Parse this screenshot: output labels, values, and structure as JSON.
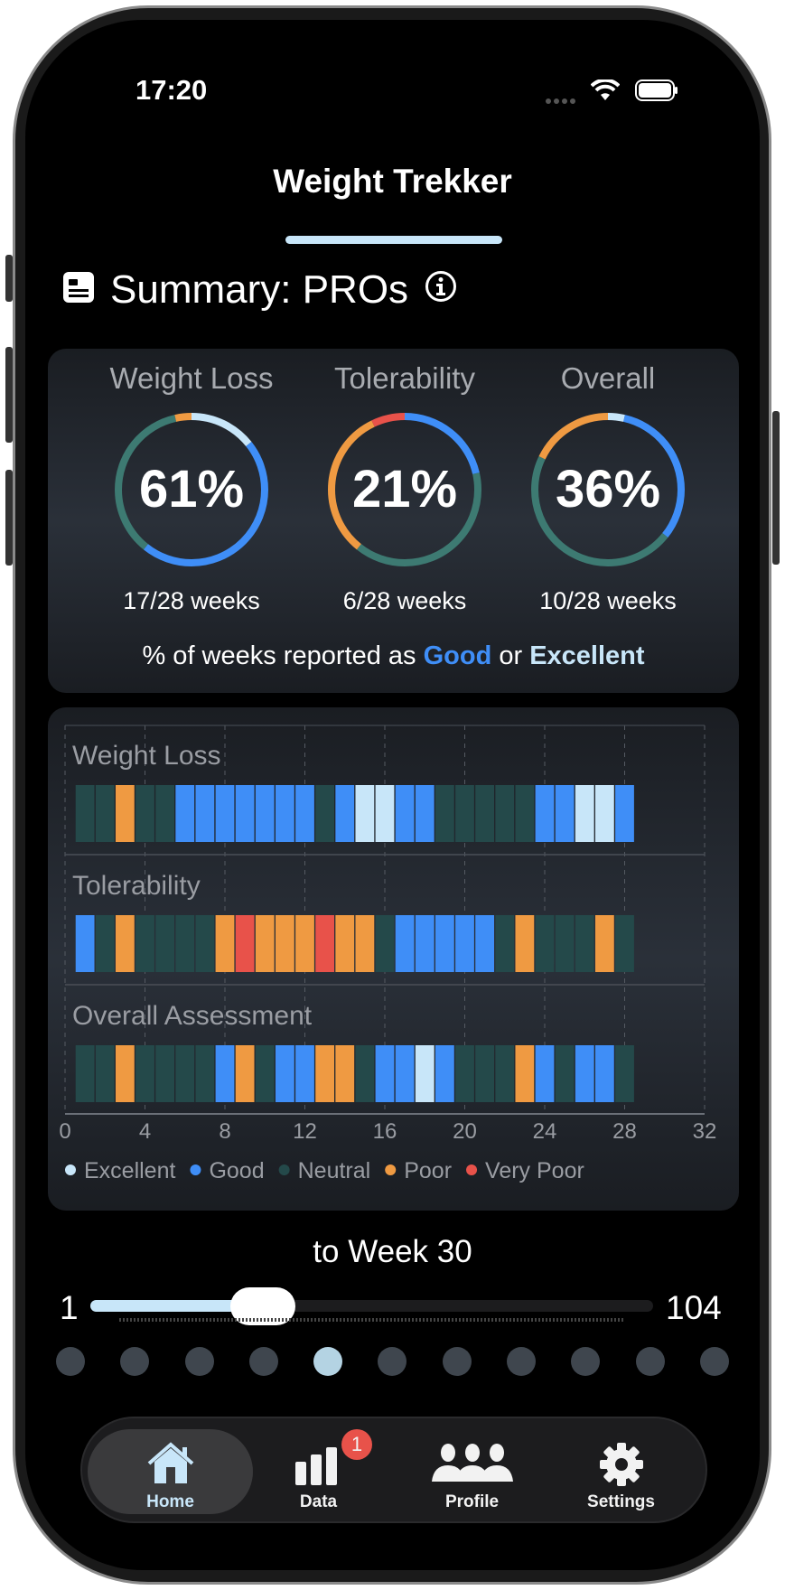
{
  "status": {
    "time": "17:20"
  },
  "app_title": "Weight Trekker",
  "section": {
    "title": "Summary: PROs",
    "icon": "summary-card-icon",
    "info_icon": "info-icon"
  },
  "colors": {
    "excellent": "#c8e6f9",
    "good": "#3f8ef7",
    "neutral": "#24494a",
    "neutral_ring": "#3d7a72",
    "poor": "#ef9a42",
    "very_poor": "#e8524a"
  },
  "summary": {
    "rings": [
      {
        "label": "Weight Loss",
        "percent": "61%",
        "weeks": "17/28 weeks",
        "counts": {
          "excellent": 4,
          "good": 13,
          "neutral": 10,
          "poor": 1,
          "very_poor": 0
        }
      },
      {
        "label": "Tolerability",
        "percent": "21%",
        "weeks": "6/28 weeks",
        "counts": {
          "excellent": 0,
          "good": 6,
          "neutral": 11,
          "poor": 9,
          "very_poor": 2
        }
      },
      {
        "label": "Overall",
        "percent": "36%",
        "weeks": "10/28 weeks",
        "counts": {
          "excellent": 1,
          "good": 9,
          "neutral": 13,
          "poor": 5,
          "very_poor": 0
        }
      }
    ],
    "caption_pre": "% of weeks reported as ",
    "caption_good": "Good",
    "caption_mid": " or ",
    "caption_excellent": "Excellent"
  },
  "chart_data": {
    "type": "heatmap",
    "xlim": [
      0,
      32
    ],
    "x_ticks": [
      "0",
      "4",
      "8",
      "12",
      "16",
      "20",
      "24",
      "28",
      "32"
    ],
    "grid": true,
    "legend_placement": "bottom",
    "legend": [
      "Excellent",
      "Good",
      "Neutral",
      "Poor",
      "Very Poor"
    ],
    "weeks": [
      1,
      2,
      3,
      4,
      5,
      6,
      7,
      8,
      9,
      10,
      11,
      12,
      13,
      14,
      15,
      16,
      17,
      18,
      19,
      20,
      21,
      22,
      23,
      24,
      25,
      26,
      27,
      28
    ],
    "series": [
      {
        "name": "Weight Loss",
        "values": [
          "N",
          "N",
          "P",
          "N",
          "N",
          "G",
          "G",
          "G",
          "G",
          "G",
          "G",
          "G",
          "N",
          "G",
          "E",
          "E",
          "G",
          "G",
          "N",
          "N",
          "N",
          "N",
          "N",
          "G",
          "G",
          "E",
          "E",
          "G"
        ]
      },
      {
        "name": "Tolerability",
        "values": [
          "G",
          "N",
          "P",
          "N",
          "N",
          "N",
          "N",
          "P",
          "VP",
          "P",
          "P",
          "P",
          "VP",
          "P",
          "P",
          "N",
          "G",
          "G",
          "G",
          "G",
          "G",
          "N",
          "P",
          "N",
          "N",
          "N",
          "P",
          "N"
        ]
      },
      {
        "name": "Overall Assessment",
        "values": [
          "N",
          "N",
          "P",
          "N",
          "N",
          "N",
          "N",
          "G",
          "P",
          "N",
          "G",
          "G",
          "P",
          "P",
          "N",
          "G",
          "G",
          "E",
          "G",
          "N",
          "N",
          "N",
          "P",
          "G",
          "N",
          "G",
          "G",
          "N"
        ]
      }
    ]
  },
  "slider": {
    "label": "to Week 30",
    "min": "1",
    "max": "104",
    "value": 30
  },
  "pager": {
    "count": 11,
    "active_index": 4
  },
  "tabs": [
    {
      "label": "Home",
      "icon": "home-icon",
      "active": true
    },
    {
      "label": "Data",
      "icon": "bar-chart-icon",
      "badge": "1"
    },
    {
      "label": "Profile",
      "icon": "people-icon"
    },
    {
      "label": "Settings",
      "icon": "gear-icon"
    }
  ]
}
